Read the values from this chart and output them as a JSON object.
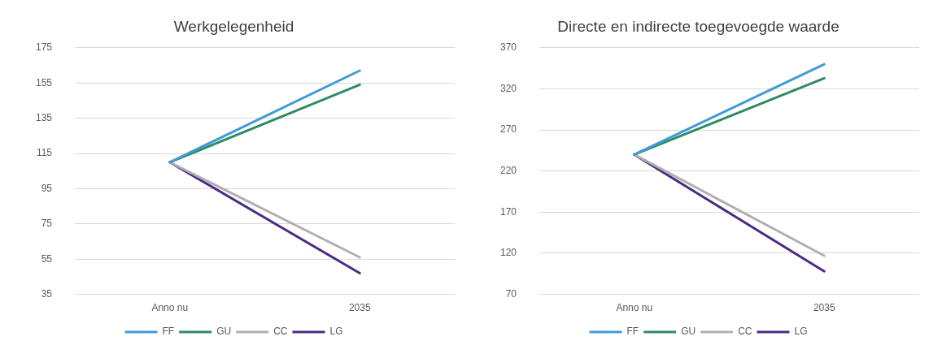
{
  "chart_data": [
    {
      "type": "line",
      "title": "Werkgelegenheid",
      "categories": [
        "Anno nu",
        "2035"
      ],
      "series": [
        {
          "name": "FF",
          "color": "#419bd7",
          "values": [
            110,
            162
          ]
        },
        {
          "name": "GU",
          "color": "#2f8a64",
          "values": [
            110,
            154
          ]
        },
        {
          "name": "CC",
          "color": "#b0b0b0",
          "values": [
            110,
            56
          ]
        },
        {
          "name": "LG",
          "color": "#4a2a86",
          "values": [
            110,
            47
          ]
        }
      ],
      "ylim": [
        35,
        175
      ],
      "yticks": [
        35,
        55,
        75,
        95,
        115,
        135,
        155,
        175
      ],
      "grid": "y",
      "legend": "bottom",
      "marker": "none",
      "line_style": "solid"
    },
    {
      "type": "line",
      "title": "Directe en indirecte toegevoegde waarde",
      "categories": [
        "Anno nu",
        "2035"
      ],
      "series": [
        {
          "name": "FF",
          "color": "#419bd7",
          "values": [
            240,
            350
          ]
        },
        {
          "name": "GU",
          "color": "#2f8a64",
          "values": [
            240,
            333
          ]
        },
        {
          "name": "CC",
          "color": "#b0b0b0",
          "values": [
            240,
            117
          ]
        },
        {
          "name": "LG",
          "color": "#4a2a86",
          "values": [
            240,
            98
          ]
        }
      ],
      "ylim": [
        70,
        370
      ],
      "yticks": [
        70,
        120,
        170,
        220,
        270,
        320,
        370
      ],
      "grid": "y",
      "legend": "bottom",
      "marker": "none",
      "line_style": "solid"
    }
  ]
}
